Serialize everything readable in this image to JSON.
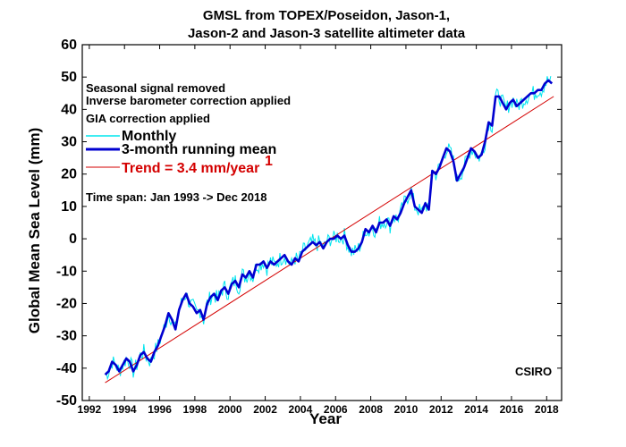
{
  "chart_data": {
    "type": "line",
    "title": [
      "GMSL from TOPEX/Poseidon, Jason-1,",
      "Jason-2 and Jason-3 satellite altimeter data"
    ],
    "xlabel": "Year",
    "ylabel": "Global Mean Sea Level (mm)",
    "xlim": [
      1991.6,
      2018.85
    ],
    "ylim": [
      -50,
      60
    ],
    "x_ticks": [
      "1992",
      "1994",
      "1996",
      "1998",
      "2000",
      "2002",
      "2004",
      "2006",
      "2008",
      "2010",
      "2012",
      "2014",
      "2016",
      "2018"
    ],
    "y_ticks": [
      "-50",
      "-40",
      "-30",
      "-20",
      "-10",
      "0",
      "10",
      "20",
      "30",
      "40",
      "50",
      "60"
    ],
    "grid": false,
    "notes": [
      "Seasonal signal removed",
      "Inverse barometer correction applied",
      "GIA correction applied"
    ],
    "time_span": "Time span: Jan 1993 -> Dec 2018",
    "source_label": "CSIRO",
    "legend": {
      "placement": "upper-left",
      "monthly": "Monthly",
      "running_mean": "3-month running mean",
      "trend": "Trend = 3.4 mm/year",
      "trend_superscript": "1"
    },
    "colors": {
      "monthly": "#00e5ee",
      "running_mean": "#0000d0",
      "trend": "#d40000",
      "trend_text": "#d40000"
    },
    "series": [
      {
        "name": "3-month running mean",
        "x": [
          1992.9,
          1993.1,
          1993.3,
          1993.5,
          1993.7,
          1993.9,
          1994.1,
          1994.3,
          1994.5,
          1994.7,
          1994.9,
          1995.1,
          1995.3,
          1995.5,
          1995.7,
          1995.9,
          1996.1,
          1996.3,
          1996.5,
          1996.7,
          1996.9,
          1997.1,
          1997.3,
          1997.5,
          1997.7,
          1997.9,
          1998.1,
          1998.3,
          1998.5,
          1998.7,
          1998.9,
          1999.1,
          1999.3,
          1999.5,
          1999.7,
          1999.9,
          2000.1,
          2000.3,
          2000.5,
          2000.7,
          2000.9,
          2001.1,
          2001.3,
          2001.5,
          2001.7,
          2001.9,
          2002.1,
          2002.3,
          2002.5,
          2002.7,
          2002.9,
          2003.1,
          2003.3,
          2003.5,
          2003.7,
          2003.9,
          2004.1,
          2004.3,
          2004.5,
          2004.7,
          2004.9,
          2005.1,
          2005.3,
          2005.5,
          2005.7,
          2005.9,
          2006.1,
          2006.3,
          2006.5,
          2006.7,
          2006.9,
          2007.1,
          2007.3,
          2007.5,
          2007.7,
          2007.9,
          2008.1,
          2008.3,
          2008.5,
          2008.7,
          2008.9,
          2009.1,
          2009.3,
          2009.5,
          2009.7,
          2009.9,
          2010.1,
          2010.3,
          2010.5,
          2010.7,
          2010.9,
          2011.1,
          2011.3,
          2011.5,
          2011.7,
          2011.9,
          2012.1,
          2012.3,
          2012.5,
          2012.7,
          2012.9,
          2013.1,
          2013.3,
          2013.5,
          2013.7,
          2013.9,
          2014.1,
          2014.3,
          2014.5,
          2014.7,
          2014.9,
          2015.1,
          2015.3,
          2015.5,
          2015.7,
          2015.9,
          2016.1,
          2016.3,
          2016.5,
          2016.7,
          2016.9,
          2017.1,
          2017.3,
          2017.5,
          2017.7,
          2017.9,
          2018.1,
          2018.3
        ],
        "values": [
          -42,
          -41,
          -38,
          -39,
          -41,
          -39,
          -37,
          -38,
          -41,
          -39,
          -36,
          -35,
          -37,
          -38,
          -35,
          -33,
          -30,
          -27,
          -23,
          -25,
          -28,
          -22,
          -19,
          -17,
          -20,
          -21,
          -23,
          -22,
          -25,
          -20,
          -18,
          -17,
          -19,
          -16,
          -15,
          -17,
          -14,
          -13,
          -15,
          -11,
          -12,
          -10,
          -12,
          -8,
          -8,
          -7,
          -9,
          -7,
          -8,
          -7,
          -6,
          -5,
          -7,
          -8,
          -6,
          -7,
          -4,
          -3,
          -2,
          -1,
          -2,
          -1,
          -3,
          -1,
          0,
          0,
          1,
          0,
          1,
          -2,
          -4,
          -4,
          -3,
          -1,
          3,
          2,
          4,
          2,
          5,
          5,
          6,
          4,
          7,
          6,
          8,
          11,
          13,
          15,
          10,
          9,
          8,
          11,
          9,
          21,
          20,
          22,
          25,
          28,
          27,
          24,
          18,
          20,
          22,
          25,
          28,
          27,
          25,
          26,
          30,
          36,
          35,
          44,
          44,
          42,
          40,
          42,
          43,
          41,
          42,
          43,
          44,
          45,
          45,
          46,
          46,
          48,
          49,
          48
        ]
      },
      {
        "name": "Trend = 3.4 mm/year",
        "x": [
          1992.9,
          2018.4
        ],
        "values": [
          -44.5,
          44.0
        ]
      }
    ]
  }
}
